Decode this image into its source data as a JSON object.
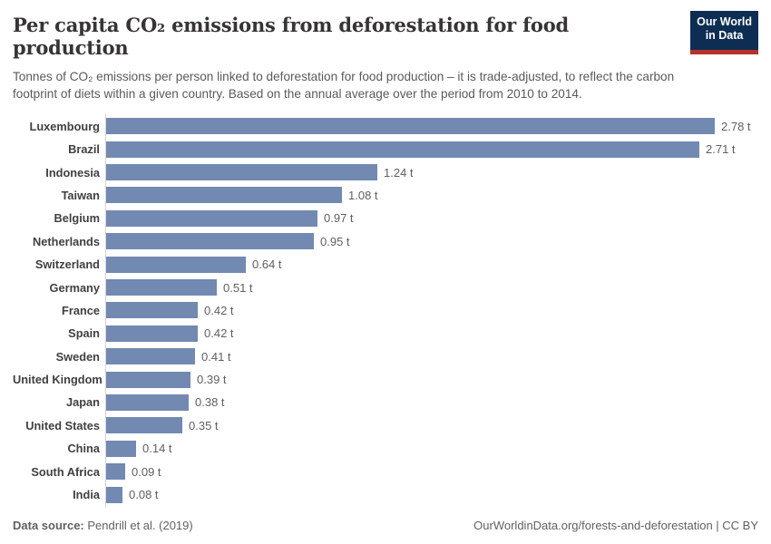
{
  "header": {
    "title": "Per capita CO₂ emissions from deforestation for food production",
    "subtitle": "Tonnes of CO₂ emissions per person linked to deforestation for food production – it is trade-adjusted, to reflect the carbon footprint of diets within a given country. Based on the annual average over the period from 2010 to 2014.",
    "logo_line1": "Our World",
    "logo_line2": "in Data"
  },
  "chart_data": {
    "type": "bar",
    "orientation": "horizontal",
    "title": "Per capita CO₂ emissions from deforestation for food production",
    "xlabel": "",
    "ylabel": "",
    "unit": "tonnes CO₂ per person",
    "xlim": [
      0,
      2.78
    ],
    "grid": false,
    "legend": false,
    "categories": [
      "Luxembourg",
      "Brazil",
      "Indonesia",
      "Taiwan",
      "Belgium",
      "Netherlands",
      "Switzerland",
      "Germany",
      "France",
      "Spain",
      "Sweden",
      "United Kingdom",
      "Japan",
      "United States",
      "China",
      "South Africa",
      "India"
    ],
    "values": [
      2.78,
      2.71,
      1.24,
      1.08,
      0.97,
      0.95,
      0.64,
      0.51,
      0.42,
      0.42,
      0.41,
      0.39,
      0.38,
      0.35,
      0.14,
      0.09,
      0.08
    ],
    "value_labels": [
      "2.78 t",
      "2.71 t",
      "1.24 t",
      "1.08 t",
      "0.97 t",
      "0.95 t",
      "0.64 t",
      "0.51 t",
      "0.42 t",
      "0.42 t",
      "0.41 t",
      "0.39 t",
      "0.38 t",
      "0.35 t",
      "0.14 t",
      "0.09 t",
      "0.08 t"
    ]
  },
  "colors": {
    "bar": "#7289b1",
    "axis_line": "#d6d6d6",
    "logo_navy": "#0d2e52",
    "logo_red": "#b5312c",
    "title_text": "#373435",
    "subtitle_text": "#5a5a5a"
  },
  "footer": {
    "source_label": "Data source:",
    "source_value": "Pendrill et al. (2019)",
    "credit": "OurWorldinData.org/forests-and-deforestation | CC BY"
  }
}
